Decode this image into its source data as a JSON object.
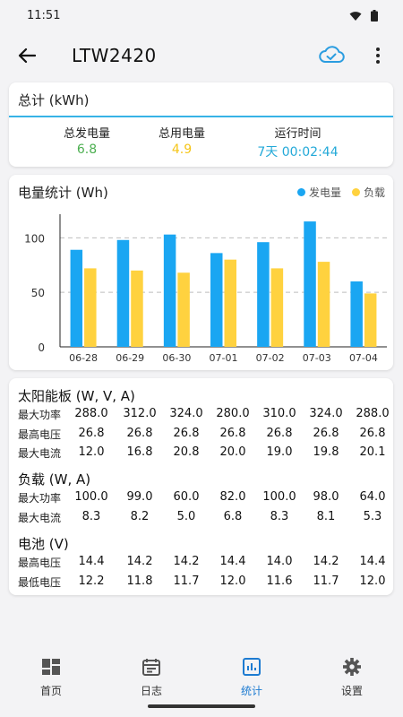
{
  "status": {
    "time": "11:51"
  },
  "header": {
    "title": "LTW2420"
  },
  "total": {
    "title": "总计 (kWh)",
    "items": [
      {
        "label": "总发电量",
        "value": "6.8",
        "color": "#4caf50"
      },
      {
        "label": "总用电量",
        "value": "4.9",
        "color": "#f5c518"
      },
      {
        "label": "运行时间",
        "value": "7天 00:02:44",
        "color": "#23a9d8"
      }
    ]
  },
  "chart": {
    "title": "电量统计 (Wh)",
    "legend": {
      "gen": "发电量",
      "load": "负载"
    }
  },
  "chart_data": {
    "type": "bar",
    "categories": [
      "06-28",
      "06-29",
      "06-30",
      "07-01",
      "07-02",
      "07-03",
      "07-04"
    ],
    "series": [
      {
        "name": "发电量",
        "color": "#1aa6f2",
        "values": [
          89,
          98,
          103,
          86,
          96,
          115,
          60
        ]
      },
      {
        "name": "负载",
        "color": "#ffd23f",
        "values": [
          72,
          70,
          68,
          80,
          72,
          78,
          49
        ]
      }
    ],
    "yticks": [
      "0",
      "50",
      "100"
    ],
    "ylim": [
      0,
      120
    ],
    "grid": true,
    "legend": "top-right"
  },
  "solar": {
    "title": "太阳能板 (W, V, A)",
    "rows": [
      {
        "label": "最大功率",
        "values": [
          "288.0",
          "312.0",
          "324.0",
          "280.0",
          "310.0",
          "324.0",
          "288.0"
        ]
      },
      {
        "label": "最高电压",
        "values": [
          "26.8",
          "26.8",
          "26.8",
          "26.8",
          "26.8",
          "26.8",
          "26.8"
        ]
      },
      {
        "label": "最大电流",
        "values": [
          "12.0",
          "16.8",
          "20.8",
          "20.0",
          "19.0",
          "19.8",
          "20.1"
        ]
      }
    ]
  },
  "load": {
    "title": "负载 (W, A)",
    "rows": [
      {
        "label": "最大功率",
        "values": [
          "100.0",
          "99.0",
          "60.0",
          "82.0",
          "100.0",
          "98.0",
          "64.0"
        ]
      },
      {
        "label": "最大电流",
        "values": [
          "8.3",
          "8.2",
          "5.0",
          "6.8",
          "8.3",
          "8.1",
          "5.3"
        ]
      }
    ]
  },
  "battery": {
    "title": "电池 (V)",
    "rows": [
      {
        "label": "最高电压",
        "values": [
          "14.4",
          "14.2",
          "14.2",
          "14.4",
          "14.0",
          "14.2",
          "14.4"
        ]
      },
      {
        "label": "最低电压",
        "values": [
          "12.2",
          "11.8",
          "11.7",
          "12.0",
          "11.6",
          "11.7",
          "12.0"
        ]
      }
    ]
  },
  "nav": {
    "items": [
      {
        "label": "首页",
        "icon": "dashboard-icon"
      },
      {
        "label": "日志",
        "icon": "calendar-icon"
      },
      {
        "label": "统计",
        "icon": "bar-chart-icon"
      },
      {
        "label": "设置",
        "icon": "gear-icon"
      }
    ],
    "active_color": "#1d7bd1"
  }
}
